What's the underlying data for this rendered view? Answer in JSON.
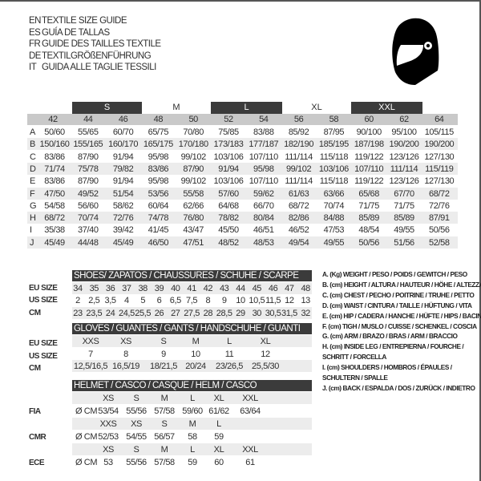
{
  "titles": [
    {
      "code": "EN",
      "text": "TEXTILE SIZE GUIDE"
    },
    {
      "code": "ES",
      "text": "GUÍA DE TALLAS"
    },
    {
      "code": "FR",
      "text": "GUIDE DES TAILLES TEXTILE"
    },
    {
      "code": "DE",
      "text": "TEXTILGRÖßENFÜHRUNG"
    },
    {
      "code": "IT",
      "text": "GUIDA ALLE TAGLIE TESSILI"
    }
  ],
  "helmet_icon": "helmet-icon",
  "colors": {
    "header_dark": "#3b3b3b",
    "header_grey": "#c9c9c9",
    "row_alt": "#ececec"
  },
  "textile": {
    "size_bands": [
      {
        "label": "S",
        "dark": true
      },
      {
        "label": "M",
        "dark": false
      },
      {
        "label": "L",
        "dark": true
      },
      {
        "label": "XL",
        "dark": false
      },
      {
        "label": "XXL",
        "dark": true
      }
    ],
    "eu_sizes": [
      "42",
      "44",
      "46",
      "48",
      "50",
      "52",
      "54",
      "56",
      "58",
      "60",
      "62",
      "64"
    ],
    "rows": [
      {
        "letter": "A",
        "values": [
          "50/60",
          "55/65",
          "60/70",
          "65/75",
          "70/80",
          "75/85",
          "83/88",
          "85/92",
          "87/95",
          "90/100",
          "95/100",
          "105/115"
        ]
      },
      {
        "letter": "B",
        "values": [
          "150/160",
          "155/165",
          "160/170",
          "165/175",
          "170/180",
          "173/183",
          "177/187",
          "182/190",
          "185/195",
          "187/198",
          "190/200",
          "190/200"
        ]
      },
      {
        "letter": "C",
        "values": [
          "83/86",
          "87/90",
          "91/94",
          "95/98",
          "99/102",
          "103/106",
          "107/110",
          "111/114",
          "115/118",
          "119/122",
          "123/126",
          "127/130"
        ]
      },
      {
        "letter": "D",
        "values": [
          "71/74",
          "75/78",
          "79/82",
          "83/86",
          "87/90",
          "91/94",
          "95/98",
          "99/102",
          "103/106",
          "107/110",
          "111/114",
          "115/119"
        ]
      },
      {
        "letter": "E",
        "values": [
          "83/86",
          "87/90",
          "91/94",
          "95/98",
          "99/102",
          "103/106",
          "107/110",
          "111/114",
          "115/118",
          "119/122",
          "123/126",
          "127/130"
        ]
      },
      {
        "letter": "F",
        "values": [
          "47/50",
          "49/52",
          "51/54",
          "53/56",
          "55/58",
          "57/60",
          "59/62",
          "61/63",
          "63/66",
          "65/68",
          "67/70",
          "68/72"
        ]
      },
      {
        "letter": "G",
        "values": [
          "54/58",
          "56/60",
          "58/62",
          "60/64",
          "62/66",
          "64/68",
          "66/70",
          "68/72",
          "70/74",
          "71/75",
          "71/75",
          "72/76"
        ]
      },
      {
        "letter": "H",
        "values": [
          "68/72",
          "70/74",
          "72/76",
          "74/78",
          "76/80",
          "78/82",
          "80/84",
          "82/86",
          "84/88",
          "85/89",
          "85/89",
          "87/91"
        ]
      },
      {
        "letter": "I",
        "values": [
          "35/38",
          "37/40",
          "39/42",
          "41/45",
          "43/47",
          "45/50",
          "46/51",
          "46/52",
          "47/53",
          "48/54",
          "49/55",
          "50/56"
        ]
      },
      {
        "letter": "J",
        "values": [
          "45/49",
          "44/48",
          "45/49",
          "46/50",
          "47/51",
          "48/52",
          "48/53",
          "49/54",
          "49/55",
          "50/56",
          "51/56",
          "52/58"
        ]
      }
    ]
  },
  "shoes": {
    "title": "SHOES/ ZAPATOS / CHAUSSURES / SCHUHE / SCARPE",
    "rows": [
      {
        "label": "EU SIZE",
        "values": [
          "34",
          "35",
          "36",
          "37",
          "38",
          "39",
          "40",
          "41",
          "42",
          "43",
          "44",
          "45",
          "46",
          "47",
          "48"
        ]
      },
      {
        "label": "US SIZE",
        "values": [
          "2",
          "2,5",
          "3,5",
          "4",
          "5",
          "6",
          "6,5",
          "7,5",
          "8",
          "9",
          "10",
          "10,5",
          "11,5",
          "12",
          "13"
        ]
      },
      {
        "label": "CM",
        "values": [
          "23",
          "23,5",
          "24",
          "24,5",
          "25,5",
          "26",
          "27",
          "27,5",
          "28",
          "28,5",
          "29",
          "30",
          "30,5",
          "31,5",
          "32"
        ]
      }
    ]
  },
  "gloves": {
    "title": "GLOVES / GUANTES / GANTS / HANDSCHUHE / GUANTI",
    "rows": [
      {
        "label": "EU SIZE",
        "values": [
          "XXS",
          "XS",
          "S",
          "M",
          "L",
          "XL"
        ]
      },
      {
        "label": "US SIZE",
        "values": [
          "7",
          "8",
          "9",
          "10",
          "11",
          "12"
        ]
      },
      {
        "label": "CM",
        "values": [
          "12,5/16,5",
          "16,5/19",
          "18/21,5",
          "20/24",
          "23/26,5",
          "25,5/30"
        ]
      }
    ]
  },
  "helmet": {
    "title": "HELMET / CASCO / CASQUE / HELM / CASCO",
    "unit": "Ø CM",
    "standards": [
      {
        "label": "FIA",
        "sizes": [
          "XS",
          "S",
          "M",
          "L",
          "XL",
          "XXL"
        ],
        "values": [
          "53/54",
          "55/56",
          "57/58",
          "59/60",
          "61/62",
          "63/64"
        ]
      },
      {
        "label": "CMR",
        "sizes": [
          "XXS",
          "XS",
          "S",
          "M",
          "L"
        ],
        "values": [
          "52/53",
          "54/55",
          "56/57",
          "58",
          "59"
        ]
      },
      {
        "label": "ECE",
        "sizes": [
          "XS",
          "S",
          "M",
          "L",
          "XL",
          "XXL"
        ],
        "values": [
          "53",
          "55/56",
          "57/58",
          "59",
          "60",
          "61"
        ]
      }
    ]
  },
  "legend": [
    "A. (Kg) WEIGHT / PESO / POIDS / GEWITCH / PESO",
    "B. (cm) HEIGHT / ALTURA / HAUTEUR / HÖHE / ALTEZZA",
    "C. (cm) CHEST / PECHO / POITRINE / TRUHE / PETTO",
    "D. (cm) WAIST / CINTURA / TAILLE / HÜFTUNG / VITA",
    "E. (cm) HIP / CADERA / HANCHE / HÜFTE / HIPS /  BACINO",
    "F.  (cm) TIGH / MUSLO / CUISSE / SCHENKEL / COSCIA",
    "G. (cm) ARM  / BRAZO / BRAS / ARM / BRACCIO",
    "H. (cm) INSIDE LEG / ENTREPIERNA / FOURCHE /",
    "SCHRITT / FORCELLA",
    "I.  (cm) SHOULDERS / HOMBROS / ÉPAULES /",
    "SCHULTERN / SPALLE",
    "J. (cm) BACK / ESPALDA / DOS / ZURÜCK / INDIETRO"
  ]
}
